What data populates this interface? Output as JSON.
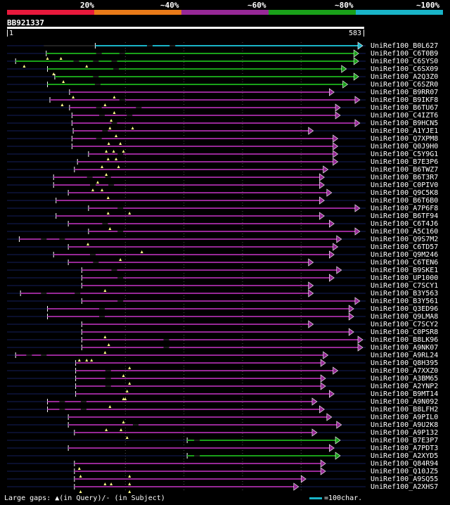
{
  "query": {
    "name": "BB921337",
    "start": "1",
    "end": "583"
  },
  "score_scale": {
    "labels": [
      "20%",
      "~40%",
      "~60%",
      "~80%",
      "~100%"
    ],
    "colors": [
      "#e8193c",
      "#e87a18",
      "#962896",
      "#19a019",
      "#19b4c8"
    ]
  },
  "footer": {
    "legend_text": "Large gaps: ▲(in Query)/- (in Subject)",
    "scale_text": "=100char."
  },
  "chart_data": {
    "type": "alignment-overview",
    "query_length": 583,
    "hits": [
      {
        "id": "UniRef100_B0L627",
        "start": 144,
        "end": 591,
        "level": "~100%",
        "conn": [
          60,
          144
        ],
        "gaps": [
          {
            "pos": 233,
            "kind": "subject"
          },
          {
            "pos": 270,
            "kind": "subject"
          }
        ],
        "tri": []
      },
      {
        "id": "UniRef100_C6T0B9",
        "start": 64,
        "end": 574,
        "level": "~80%",
        "conn": [],
        "gaps": [
          {
            "pos": 150,
            "kind": "subject"
          },
          {
            "pos": 188,
            "kind": "subject"
          }
        ],
        "tri": [
          66,
          88
        ]
      },
      {
        "id": "UniRef100_C6SYS0",
        "start": 14,
        "end": 574,
        "level": "~80%",
        "conn": [],
        "gaps": [
          {
            "pos": 113,
            "kind": "subject"
          },
          {
            "pos": 145,
            "kind": "subject"
          },
          {
            "pos": 175,
            "kind": "subject"
          }
        ],
        "tri": [
          28,
          130
        ]
      },
      {
        "id": "UniRef100_C6SX09",
        "start": 66,
        "end": 554,
        "level": "~80%",
        "conn": [],
        "gaps": [
          {
            "pos": 178,
            "kind": "subject"
          }
        ],
        "tri": [
          76
        ]
      },
      {
        "id": "UniRef100_A2Q3Z0",
        "start": 78,
        "end": 574,
        "level": "~80%",
        "conn": [],
        "gaps": [
          {
            "pos": 145,
            "kind": "subject"
          }
        ],
        "tri": [
          92
        ]
      },
      {
        "id": "UniRef100_C6SZR0",
        "start": 66,
        "end": 556,
        "level": "~80%",
        "conn": [],
        "gaps": [
          {
            "pos": 148,
            "kind": "subject"
          }
        ],
        "tri": []
      },
      {
        "id": "UniRef100_B9RR07",
        "start": 102,
        "end": 534,
        "level": "~60%",
        "conn": [],
        "gaps": [],
        "tri": [
          108,
          175
        ]
      },
      {
        "id": "UniRef100_B9IKF8",
        "start": 70,
        "end": 576,
        "level": "~60%",
        "conn": [],
        "gaps": [
          {
            "pos": 188,
            "kind": "subject"
          }
        ],
        "tri": [
          90,
          160
        ]
      },
      {
        "id": "UniRef100_B6TU67",
        "start": 102,
        "end": 544,
        "level": "~60%",
        "conn": [],
        "gaps": [
          {
            "pos": 150,
            "kind": "subject"
          },
          {
            "pos": 215,
            "kind": "subject"
          }
        ],
        "tri": [
          175
        ]
      },
      {
        "id": "UniRef100_C4IZT6",
        "start": 106,
        "end": 544,
        "level": "~60%",
        "conn": [],
        "gaps": [
          {
            "pos": 155,
            "kind": "subject"
          },
          {
            "pos": 200,
            "kind": "subject"
          }
        ],
        "tri": [
          170
        ]
      },
      {
        "id": "UniRef100_B9HCN5",
        "start": 106,
        "end": 576,
        "level": "~60%",
        "conn": [],
        "gaps": [
          {
            "pos": 175,
            "kind": "subject"
          }
        ],
        "tri": [
          168,
          205
        ]
      },
      {
        "id": "UniRef100_A1YJE1",
        "start": 108,
        "end": 500,
        "level": "~60%",
        "conn": [],
        "gaps": [
          {
            "pos": 160,
            "kind": "subject"
          }
        ],
        "tri": [
          178
        ]
      },
      {
        "id": "UniRef100_Q7XPM8",
        "start": 106,
        "end": 540,
        "level": "~60%",
        "conn": [],
        "gaps": [
          {
            "pos": 150,
            "kind": "subject"
          }
        ],
        "tri": [
          166,
          185
        ]
      },
      {
        "id": "UniRef100_Q0J9H0",
        "start": 106,
        "end": 540,
        "level": "~60%",
        "conn": [],
        "gaps": [],
        "tri": [
          162,
          174,
          190
        ]
      },
      {
        "id": "UniRef100_C5Y9G1",
        "start": 133,
        "end": 540,
        "level": "~60%",
        "conn": [],
        "gaps": [
          {
            "pos": 185,
            "kind": "subject"
          }
        ],
        "tri": [
          165,
          178
        ]
      },
      {
        "id": "UniRef100_B7E3P6",
        "start": 115,
        "end": 540,
        "level": "~60%",
        "conn": [],
        "gaps": [],
        "tri": [
          155,
          182
        ]
      },
      {
        "id": "UniRef100_B6TWZ7",
        "start": 110,
        "end": 524,
        "level": "~60%",
        "conn": [],
        "gaps": [],
        "tri": [
          162
        ]
      },
      {
        "id": "UniRef100_B6T3R7",
        "start": 76,
        "end": 518,
        "level": "~60%",
        "conn": [],
        "gaps": [
          {
            "pos": 135,
            "kind": "subject"
          },
          {
            "pos": 165,
            "kind": "subject"
          }
        ],
        "tri": [
          148
        ]
      },
      {
        "id": "UniRef100_C0PIV0",
        "start": 76,
        "end": 518,
        "level": "~60%",
        "conn": [],
        "gaps": [
          {
            "pos": 140,
            "kind": "subject"
          },
          {
            "pos": 170,
            "kind": "subject"
          }
        ],
        "tri": [
          140,
          155
        ]
      },
      {
        "id": "UniRef100_Q9C5K8",
        "start": 100,
        "end": 530,
        "level": "~60%",
        "conn": [],
        "gaps": [],
        "tri": [
          165
        ]
      },
      {
        "id": "UniRef100_B6T6B0",
        "start": 80,
        "end": 518,
        "level": "~60%",
        "conn": [],
        "gaps": [],
        "tri": []
      },
      {
        "id": "UniRef100_A7P6F8",
        "start": 133,
        "end": 576,
        "level": "~60%",
        "conn": [],
        "gaps": [
          {
            "pos": 185,
            "kind": "subject"
          }
        ],
        "tri": [
          165,
          200
        ]
      },
      {
        "id": "UniRef100_B6TF94",
        "start": 80,
        "end": 518,
        "level": "~60%",
        "conn": [],
        "gaps": [],
        "tri": []
      },
      {
        "id": "UniRef100_C6T4J6",
        "start": 100,
        "end": 534,
        "level": "~60%",
        "conn": [],
        "gaps": [
          {
            "pos": 160,
            "kind": "subject"
          }
        ],
        "tri": [
          168
        ]
      },
      {
        "id": "UniRef100_A5C160",
        "start": 133,
        "end": 576,
        "level": "~60%",
        "conn": [],
        "gaps": [
          {
            "pos": 185,
            "kind": "subject"
          }
        ],
        "tri": []
      },
      {
        "id": "UniRef100_Q9S7M2",
        "start": 20,
        "end": 546,
        "level": "~60%",
        "conn": [],
        "gaps": [
          {
            "pos": 60,
            "kind": "subject"
          },
          {
            "pos": 90,
            "kind": "subject"
          }
        ],
        "tri": [
          132
        ]
      },
      {
        "id": "UniRef100_C6TD57",
        "start": 100,
        "end": 540,
        "level": "~60%",
        "conn": [],
        "gaps": [],
        "tri": [
          220
        ]
      },
      {
        "id": "UniRef100_Q9M246",
        "start": 76,
        "end": 534,
        "level": "~60%",
        "conn": [],
        "gaps": [
          {
            "pos": 140,
            "kind": "subject"
          }
        ],
        "tri": [
          185
        ]
      },
      {
        "id": "UniRef100_C6TEN6",
        "start": 100,
        "end": 500,
        "level": "~60%",
        "conn": [],
        "gaps": [
          {
            "pos": 145,
            "kind": "subject"
          }
        ],
        "tri": []
      },
      {
        "id": "UniRef100_B9SKE1",
        "start": 122,
        "end": 546,
        "level": "~60%",
        "conn": [],
        "gaps": [
          {
            "pos": 175,
            "kind": "subject"
          }
        ],
        "tri": []
      },
      {
        "id": "UniRef100_UP1000",
        "start": 122,
        "end": 534,
        "level": "~60%",
        "conn": [],
        "gaps": [
          {
            "pos": 185,
            "kind": "subject"
          }
        ],
        "tri": []
      },
      {
        "id": "UniRef100_C7SCY1",
        "start": 122,
        "end": 500,
        "level": "~60%",
        "conn": [],
        "gaps": [],
        "tri": [
          160
        ]
      },
      {
        "id": "UniRef100_B3Y563",
        "start": 22,
        "end": 500,
        "level": "~60%",
        "conn": [],
        "gaps": [
          {
            "pos": 60,
            "kind": "subject"
          },
          {
            "pos": 115,
            "kind": "subject"
          }
        ],
        "tri": []
      },
      {
        "id": "UniRef100_B3Y561",
        "start": 122,
        "end": 576,
        "level": "~60%",
        "conn": [],
        "gaps": [
          {
            "pos": 185,
            "kind": "subject"
          }
        ],
        "tri": []
      },
      {
        "id": "UniRef100_Q3ED96",
        "start": 66,
        "end": 566,
        "level": "~60%",
        "conn": [],
        "gaps": [
          {
            "pos": 155,
            "kind": "subject"
          }
        ],
        "tri": []
      },
      {
        "id": "UniRef100_Q9LMA8",
        "start": 66,
        "end": 566,
        "level": "~60%",
        "conn": [],
        "gaps": [
          {
            "pos": 155,
            "kind": "subject"
          }
        ],
        "tri": []
      },
      {
        "id": "UniRef100_C7SCY2",
        "start": 122,
        "end": 500,
        "level": "~60%",
        "conn": [],
        "gaps": [],
        "tri": []
      },
      {
        "id": "UniRef100_C0PSR8",
        "start": 122,
        "end": 566,
        "level": "~60%",
        "conn": [],
        "gaps": [],
        "tri": [
          160
        ]
      },
      {
        "id": "UniRef100_B8LK96",
        "start": 122,
        "end": 594,
        "level": "~60%",
        "conn": [],
        "gaps": [
          {
            "pos": 260,
            "kind": "subject"
          }
        ],
        "tri": [
          166
        ]
      },
      {
        "id": "UniRef100_A9NK07",
        "start": 122,
        "end": 594,
        "level": "~60%",
        "conn": [],
        "gaps": [
          {
            "pos": 260,
            "kind": "subject"
          }
        ],
        "tri": [
          160
        ]
      },
      {
        "id": "UniRef100_A9RL24",
        "start": 14,
        "end": 524,
        "level": "~60%",
        "conn": [],
        "gaps": [
          {
            "pos": 36,
            "kind": "subject"
          },
          {
            "pos": 60,
            "kind": "subject"
          }
        ],
        "tri": [
          118,
          130,
          138
        ]
      },
      {
        "id": "UniRef100_Q8H395",
        "start": 112,
        "end": 520,
        "level": "~60%",
        "conn": [],
        "gaps": [],
        "tri": [
          200
        ]
      },
      {
        "id": "UniRef100_A7XXZ0",
        "start": 112,
        "end": 540,
        "level": "~60%",
        "conn": [],
        "gaps": [
          {
            "pos": 165,
            "kind": "subject"
          }
        ],
        "tri": [
          190
        ]
      },
      {
        "id": "UniRef100_A3BM65",
        "start": 112,
        "end": 520,
        "level": "~60%",
        "conn": [],
        "gaps": [
          {
            "pos": 165,
            "kind": "subject"
          }
        ],
        "tri": [
          200
        ]
      },
      {
        "id": "UniRef100_A2YNP2",
        "start": 112,
        "end": 520,
        "level": "~60%",
        "conn": [],
        "gaps": [
          {
            "pos": 165,
            "kind": "subject"
          }
        ],
        "tri": [
          196
        ]
      },
      {
        "id": "UniRef100_B9MT14",
        "start": 112,
        "end": 534,
        "level": "~60%",
        "conn": [],
        "gaps": [],
        "tri": [
          190,
          193
        ]
      },
      {
        "id": "UniRef100_A9N092",
        "start": 66,
        "end": 506,
        "level": "~60%",
        "conn": [],
        "gaps": [
          {
            "pos": 90,
            "kind": "subject"
          },
          {
            "pos": 125,
            "kind": "subject"
          }
        ],
        "tri": [
          168
        ]
      },
      {
        "id": "UniRef100_B8LFH2",
        "start": 66,
        "end": 518,
        "level": "~60%",
        "conn": [],
        "gaps": [
          {
            "pos": 90,
            "kind": "subject"
          },
          {
            "pos": 125,
            "kind": "subject"
          }
        ],
        "tri": []
      },
      {
        "id": "UniRef100_A9PIL0",
        "start": 100,
        "end": 530,
        "level": "~60%",
        "conn": [],
        "gaps": [],
        "tri": [
          190
        ]
      },
      {
        "id": "UniRef100_A9U2K8",
        "start": 100,
        "end": 546,
        "level": "~60%",
        "conn": [],
        "gaps": [
          {
            "pos": 210,
            "kind": "subject"
          }
        ],
        "tri": [
          162,
          186
        ]
      },
      {
        "id": "UniRef100_A9P132",
        "start": 110,
        "end": 506,
        "level": "~60%",
        "conn": [],
        "gaps": [],
        "tri": [
          196
        ]
      },
      {
        "id": "UniRef100_B7E3P7",
        "start": 294,
        "end": 544,
        "level": "~80%",
        "conn": [],
        "gaps": [
          {
            "pos": 310,
            "kind": "subject"
          }
        ],
        "tri": []
      },
      {
        "id": "UniRef100_A7PDT3",
        "start": 100,
        "end": 534,
        "level": "~60%",
        "conn": [],
        "gaps": [],
        "tri": []
      },
      {
        "id": "UniRef100_A2XYD5",
        "start": 294,
        "end": 544,
        "level": "~80%",
        "conn": [],
        "gaps": [
          {
            "pos": 310,
            "kind": "subject"
          }
        ],
        "tri": []
      },
      {
        "id": "UniRef100_Q84R94",
        "start": 110,
        "end": 520,
        "level": "~60%",
        "conn": [],
        "gaps": [],
        "tri": [
          118
        ]
      },
      {
        "id": "UniRef100_Q10JZ5",
        "start": 110,
        "end": 520,
        "level": "~60%",
        "conn": [],
        "gaps": [],
        "tri": [
          120,
          200
        ]
      },
      {
        "id": "UniRef100_A9SQ55",
        "start": 110,
        "end": 488,
        "level": "~60%",
        "conn": [],
        "gaps": [],
        "tri": [
          160,
          170,
          200
        ]
      },
      {
        "id": "UniRef100_A2XHS7",
        "start": 110,
        "end": 476,
        "level": "~60%",
        "conn": [],
        "gaps": [],
        "tri": [
          120,
          200
        ]
      }
    ]
  }
}
